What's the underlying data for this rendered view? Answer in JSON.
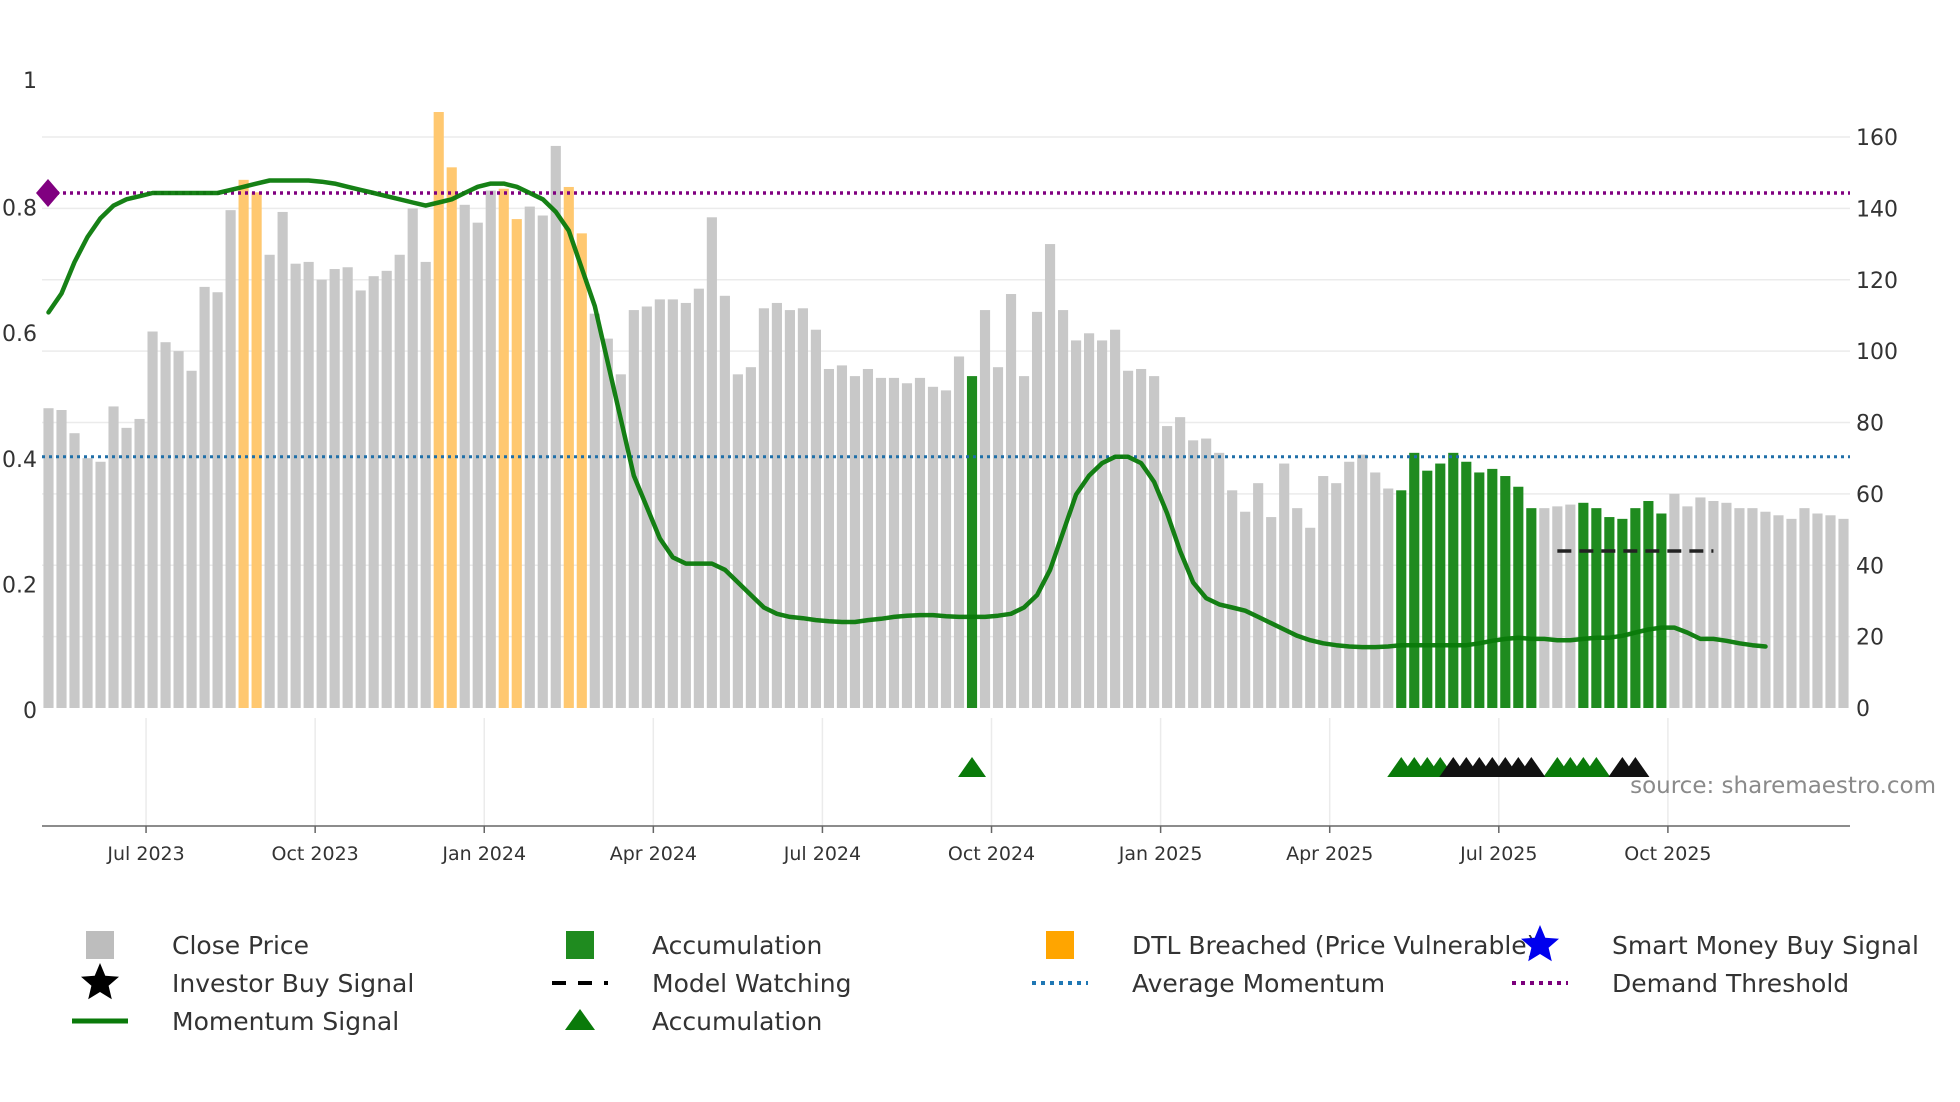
{
  "chart_data": {
    "type": "bar",
    "left_axis": {
      "ticks": [
        "0",
        "0.2",
        "0.4",
        "0.6",
        "0.8",
        "1"
      ],
      "range": [
        0,
        1.0
      ]
    },
    "right_axis": {
      "ticks": [
        "0",
        "20",
        "40",
        "60",
        "80",
        "100",
        "120",
        "140",
        "160"
      ],
      "range": [
        0,
        172
      ]
    },
    "date_axis": {
      "ticks": [
        {
          "label": "Jul 2023",
          "week": 8
        },
        {
          "label": "Oct 2023",
          "week": 21
        },
        {
          "label": "Jan 2024",
          "week": 34
        },
        {
          "label": "Apr 2024",
          "week": 47
        },
        {
          "label": "Jul 2024",
          "week": 60
        },
        {
          "label": "Oct 2024",
          "week": 73
        },
        {
          "label": "Jan 2025",
          "week": 86
        },
        {
          "label": "Apr 2025",
          "week": 99
        },
        {
          "label": "Jul 2025",
          "week": 112
        },
        {
          "label": "Oct 2025",
          "week": 125
        }
      ]
    },
    "close_price": [
      84,
      83.5,
      77,
      70,
      69,
      84.5,
      78.5,
      81,
      105.5,
      102.5,
      100,
      94.5,
      118,
      116.5,
      139.5,
      148,
      144.5,
      127,
      139,
      124.5,
      125,
      120,
      123,
      123.5,
      117,
      121,
      122.5,
      127,
      140,
      125,
      167,
      151.5,
      141,
      136,
      145,
      145.5,
      137,
      140.5,
      138,
      157.5,
      146,
      133,
      110.5,
      103.5,
      93.5,
      111.5,
      112.5,
      114.5,
      114.5,
      113.5,
      117.5,
      137.5,
      115.5,
      93.5,
      95.5,
      112,
      113.5,
      111.5,
      112,
      106,
      95,
      96,
      93,
      95,
      92.5,
      92.5,
      91,
      92.5,
      90,
      89,
      98.5,
      93,
      111.5,
      95.5,
      116,
      93,
      111,
      130,
      111.5,
      103,
      105,
      103,
      106,
      94.5,
      95,
      93,
      79,
      81.5,
      75,
      75.5,
      71.5,
      61,
      55,
      63,
      53.5,
      68.5,
      56,
      50.5,
      65,
      63,
      69,
      71,
      66,
      61.5,
      61,
      71.5,
      66.5,
      68.5,
      71.5,
      69,
      66,
      67,
      65,
      62,
      56,
      56,
      56.5,
      57,
      57.5,
      56,
      53.5,
      53,
      56,
      58,
      54.5,
      60,
      56.5,
      59,
      58,
      57.5,
      56,
      56,
      55,
      54,
      53,
      56,
      54.5,
      54,
      53
    ],
    "bar_category": [
      "grey",
      "grey",
      "grey",
      "grey",
      "grey",
      "grey",
      "grey",
      "grey",
      "grey",
      "grey",
      "grey",
      "grey",
      "grey",
      "grey",
      "grey",
      "orange",
      "orange",
      "grey",
      "grey",
      "grey",
      "grey",
      "grey",
      "grey",
      "grey",
      "grey",
      "grey",
      "grey",
      "grey",
      "grey",
      "grey",
      "orange",
      "orange",
      "grey",
      "grey",
      "grey",
      "orange",
      "orange",
      "grey",
      "grey",
      "grey",
      "orange",
      "orange",
      "grey",
      "grey",
      "grey",
      "grey",
      "grey",
      "grey",
      "grey",
      "grey",
      "grey",
      "grey",
      "grey",
      "grey",
      "grey",
      "grey",
      "grey",
      "grey",
      "grey",
      "grey",
      "grey",
      "grey",
      "grey",
      "grey",
      "grey",
      "grey",
      "grey",
      "grey",
      "grey",
      "grey",
      "grey",
      "green",
      "grey",
      "grey",
      "grey",
      "grey",
      "grey",
      "grey",
      "grey",
      "grey",
      "grey",
      "grey",
      "grey",
      "grey",
      "grey",
      "grey",
      "grey",
      "grey",
      "grey",
      "grey",
      "grey",
      "grey",
      "grey",
      "grey",
      "grey",
      "grey",
      "grey",
      "grey",
      "grey",
      "grey",
      "grey",
      "grey",
      "grey",
      "grey",
      "green",
      "green",
      "green",
      "green",
      "green",
      "green",
      "green",
      "green",
      "green",
      "green",
      "green",
      "grey",
      "grey",
      "grey",
      "green",
      "green",
      "green",
      "green",
      "green",
      "green",
      "green",
      "grey",
      "grey",
      "grey",
      "grey",
      "grey",
      "grey",
      "grey",
      "grey",
      "grey",
      "grey",
      "grey",
      "grey"
    ],
    "momentum_signal": [
      0.63,
      0.66,
      0.71,
      0.75,
      0.78,
      0.8,
      0.81,
      0.815,
      0.82,
      0.82,
      0.82,
      0.82,
      0.82,
      0.82,
      0.825,
      0.83,
      0.835,
      0.84,
      0.84,
      0.84,
      0.84,
      0.838,
      0.835,
      0.83,
      0.825,
      0.82,
      0.815,
      0.81,
      0.805,
      0.8,
      0.805,
      0.81,
      0.82,
      0.83,
      0.835,
      0.835,
      0.83,
      0.82,
      0.81,
      0.79,
      0.76,
      0.7,
      0.64,
      0.55,
      0.46,
      0.37,
      0.32,
      0.27,
      0.24,
      0.23,
      0.23,
      0.23,
      0.22,
      0.2,
      0.18,
      0.16,
      0.15,
      0.145,
      0.143,
      0.14,
      0.138,
      0.137,
      0.137,
      0.14,
      0.142,
      0.145,
      0.147,
      0.148,
      0.148,
      0.146,
      0.145,
      0.145,
      0.145,
      0.147,
      0.15,
      0.16,
      0.18,
      0.22,
      0.28,
      0.34,
      0.37,
      0.39,
      0.4,
      0.4,
      0.39,
      0.36,
      0.31,
      0.25,
      0.2,
      0.175,
      0.165,
      0.16,
      0.155,
      0.145,
      0.135,
      0.125,
      0.115,
      0.108,
      0.103,
      0.1,
      0.098,
      0.097,
      0.097,
      0.098,
      0.1,
      0.1,
      0.1,
      0.1,
      0.1,
      0.1,
      0.103,
      0.107,
      0.11,
      0.112,
      0.11,
      0.11,
      0.108,
      0.108,
      0.11,
      0.112,
      0.112,
      0.115,
      0.12,
      0.125,
      0.128,
      0.128,
      0.12,
      0.11,
      0.11,
      0.107,
      0.103,
      0.1,
      0.098
    ],
    "average_momentum": 0.4,
    "demand_threshold": 0.82,
    "model_watching": {
      "value": 0.25,
      "start_week": 116,
      "end_week": 128
    },
    "accumulation_triangles": [
      71,
      104,
      105,
      106,
      107,
      116,
      117,
      118,
      119
    ],
    "investor_buy_stars": [
      108,
      109,
      110,
      111,
      112,
      113,
      114,
      121,
      122
    ],
    "demand_marker": {
      "week": 0,
      "value": 0.82
    },
    "source": "source: sharemaestro.com",
    "legend": [
      {
        "label": "Close Price",
        "symbol": "square",
        "color": "#bdbdbd"
      },
      {
        "label": "Accumulation",
        "symbol": "square",
        "color": "#1f8b1f"
      },
      {
        "label": "DTL Breached (Price Vulnerable)",
        "symbol": "square",
        "color": "#ffa500"
      },
      {
        "label": "Smart Money Buy Signal",
        "symbol": "star",
        "color": "#0000ee"
      },
      {
        "label": "Investor Buy Signal",
        "symbol": "star",
        "color": "#000000"
      },
      {
        "label": "Model Watching",
        "symbol": "dash",
        "color": "#000000"
      },
      {
        "label": "Average Momentum",
        "symbol": "dot",
        "color": "#1f77b4"
      },
      {
        "label": "Demand Threshold",
        "symbol": "dot",
        "color": "#7b007b"
      },
      {
        "label": "Momentum Signal",
        "symbol": "line",
        "color": "#0a7a0a"
      },
      {
        "label": "Accumulation",
        "symbol": "triangle",
        "color": "#0a7a0a"
      }
    ],
    "colors": {
      "grey": "#c8c8c8",
      "green": "#1f8b1f",
      "orange": "#ffc870",
      "momentum": "#0a7a0a",
      "average": "#1f6fa8",
      "demand": "#800080",
      "triangle": "#0a7a0a",
      "star": "#000000"
    }
  }
}
